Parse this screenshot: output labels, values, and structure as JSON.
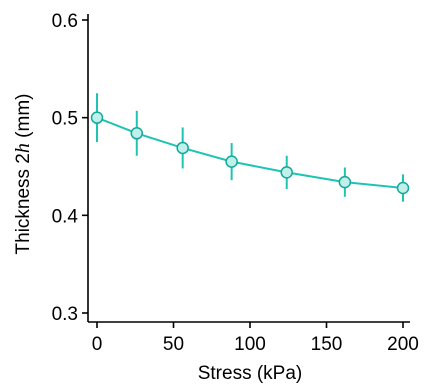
{
  "colors": {
    "line": "#1ec4b2",
    "marker_fill": "#bff0e9",
    "marker_stroke": "#14a898",
    "axis": "#000000"
  },
  "chart_data": {
    "type": "line",
    "title": "",
    "xlabel": "Stress (kPa)",
    "ylabel": {
      "prefix": "Thickness ",
      "number": "2",
      "variable": "h",
      "suffix": " (mm)"
    },
    "xlim": [
      0,
      200
    ],
    "ylim": [
      0.3,
      0.6
    ],
    "x_ticks": [
      0,
      50,
      100,
      150,
      200
    ],
    "x_tick_labels": [
      "0",
      "50",
      "100",
      "150",
      "200"
    ],
    "y_ticks": [
      0.3,
      0.4,
      0.5,
      0.6
    ],
    "y_tick_labels": [
      "0.3",
      "0.4",
      "0.5",
      "0.6"
    ],
    "grid": false,
    "series": [
      {
        "x": [
          0,
          26,
          56,
          88,
          124,
          162,
          200
        ],
        "y": [
          0.5,
          0.484,
          0.469,
          0.455,
          0.444,
          0.434,
          0.428
        ],
        "error": [
          0.025,
          0.023,
          0.021,
          0.019,
          0.017,
          0.015,
          0.014
        ]
      }
    ]
  }
}
